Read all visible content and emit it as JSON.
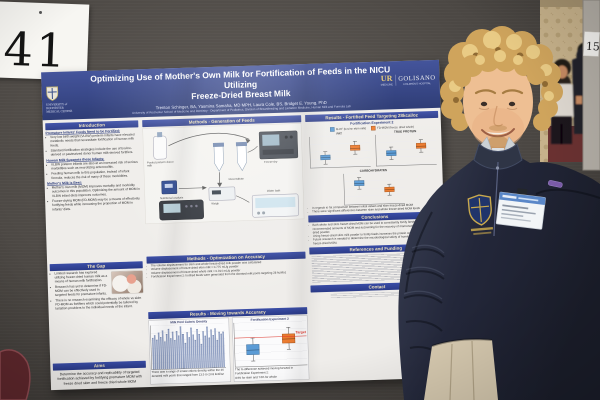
{
  "scene": {
    "board_sign_number": "41",
    "background_sign_number": "15",
    "colors": {
      "poster_header_blue": "#2c3e88",
      "section_band_blue": "#31459b",
      "band_text_gold": "#efe3bd",
      "box_blue": "#5b9bd5",
      "box_orange": "#ed7d31",
      "target_red": "#e03a2f",
      "board_gray": "#56514c",
      "wallpaper_tan": "#c7b28b",
      "sweater_navy": "#262b3b",
      "hair_blond": "#cfa45c",
      "pants_khaki": "#d7cab0",
      "chair_maroon": "#5e272c"
    }
  },
  "poster": {
    "title_line1": "Optimizing Use of Mother's Own Milk for Fortification of Feeds in the NICU Utilizing",
    "title_line2": "Freeze-Dried Breast Milk",
    "authors": "Trenton Schinger, BA, Yasmina Samaha, MD MPH, Laura Cole, BS, Bridget E. Young, PhD",
    "affiliation": "University of Rochester School of Medicine and Dentistry · Department of Pediatrics, Division of Breastfeeding and Lactation Medicine, Human Milk and Formula Lab",
    "logo_left": {
      "line1": "UNIVERSITY of",
      "line2": "ROCHESTER",
      "line3": "MEDICAL CENTER"
    },
    "logo_right": {
      "brand1": "UR",
      "brand1_sub": "MEDICINE",
      "brand2": "GOLISANO",
      "brand2_sub": "CHILDREN'S HOSPITAL"
    },
    "sections": {
      "introduction": {
        "header": "Introduction",
        "sub1_title": "Premature Infants' Feeds Need to be Fortified:",
        "sub1_bullets": [
          "Very low birth weight (VLBW) preterm infants have elevated metabolic needs that necessitate fortification of human milk feeds.",
          "Standard fortification strategies include the use of bovine-derived or pasteurized donor human milk-derived fortifiers."
        ],
        "sub2_title": "Human Milk Supports these Infants:",
        "sub2_bullets": [
          "VLBW preterm infants are also at an increased risk of serious morbidities such as necrotizing enterocolitis.",
          "Feeding human milk to this population, instead of infant formula, reduces the risk of many of these morbidities."
        ],
        "sub3_title": "Mother's Milk is Best:",
        "sub3_bullets": [
          "Mother's own milk (MOM) improves mortality and morbidity outcomes in this population. Optimizing the amount of MOM in VLBW infant diets improves outcomes.",
          "Freeze-drying MOM (FD-MOM) may be a means of effectively fortifying feeds while increasing the proportion of MOM in infants' diets."
        ]
      },
      "gap": {
        "header": "The Gap",
        "bullets": [
          "Limited research has explored utilizing freeze-dried human milk as a means of human milk fortification.",
          "Research has yet to determine if FD-MOM can be effectively used in targeted feeds for premature infants.",
          "There is no research examining the efficacy of whole vs skim FD-MOM as fortifiers which could potentially be tailored by lactation providers to the individual needs of the infant."
        ]
      },
      "aims": {
        "header": "Aims",
        "text": "Determine the accuracy and replicability of targeted fortification achieved by fortifying premature MOM with freeze dried skim and freeze dried whole MOM"
      },
      "methods_generation": {
        "header": "Methods - Generation of Feeds",
        "labels": [
          "Pooled preterm donor milk",
          "Freeze-dry",
          "Weigh",
          "Reconstitute",
          "Nutritional analysis",
          "Water bath"
        ]
      },
      "methods_optimization": {
        "header": "Methods - Optimization on Accuracy",
        "bullets": [
          "The volume displacement for skim and whole freeze-dried milk powder was calculated:",
          "Volume displacement of freeze-dried skim milk ≈ 0.775 mL/g powder",
          "Volume displacement of freeze-dried whole milk ≈ 0.914 mL/g powder",
          "Fortification Experiment 2: fortified feeds were generated from the donated milk pools targeting 28 kcal/oz"
        ]
      },
      "results_accuracy": {
        "header": "Results - Moving towards Accuracy"
      },
      "results_fortified": {
        "header": "Results - Fortified Feed Targeting 28kcal/oz",
        "subtitle": "Fortification Experiment 2",
        "legend": [
          {
            "label": "M-HF (bovine skim milk)",
            "color": "#5b9bd5"
          },
          {
            "label": "FD-MOM (freeze dried whole)",
            "color": "#ed7d31"
          }
        ],
        "notes": [
          "In regards to fat comparison between initial values and skim freeze-dried MOM",
          "There were significant differences between skim and whole freeze-dried MOM feeds"
        ]
      },
      "conclusions": {
        "header": "Conclusions",
        "bullets": [
          "Both whole and skim freeze-dried MOM can be used to consistently fortify feeds to 28 kcal/oz with recommended amounts of MOM and accounting for the recovery of macronutrients from freeze-dried powder.",
          "Using freeze-dried skim milk powder to fortify feeds increases the protein content in fortified feeds.",
          "Future research is needed to determine the microbiological safety of human milk feeds fortified with freeze-dried MOM."
        ]
      },
      "references": {
        "header": "References and Funding"
      },
      "contact": {
        "header": "Contact"
      }
    }
  },
  "chart_data": [
    {
      "type": "bar",
      "title": "Milk Pool Caloric Density",
      "ylabel": "kcal/oz",
      "ylim": [
        0,
        25
      ],
      "values": [
        17.8,
        19.2,
        16.5,
        20.4,
        18.1,
        21.6,
        15.3,
        19.8,
        22.4,
        17.2,
        20.9,
        16.1,
        21.1,
        18.6,
        23.8,
        19.5,
        14.2,
        20.2,
        17.5,
        22.8,
        18.9,
        15.8,
        21.9,
        19.1,
        13.5,
        20.6,
        17.9,
        23.1,
        16.8,
        21.4,
        18.3,
        22.1,
        15.5,
        20.1,
        18.7,
        19.9
      ],
      "note": "There was a range of innate caloric density within the 36 donated milk pools that ranged from 13.5 to 23.8 kcal/oz"
    },
    {
      "type": "boxplot",
      "title": "Fortification Experiment 2",
      "target": 28,
      "target_label": "Target",
      "ylabel": "kcal/oz",
      "ylim": [
        24,
        30
      ],
      "boxw": 26,
      "series": [
        {
          "name": "FD skim",
          "color": "#5b9bd5",
          "values": [
            24.8,
            25.6,
            26.3,
            27.0,
            27.9
          ]
        },
        {
          "name": "FD whole",
          "color": "#ed7d31",
          "values": [
            26.2,
            27.0,
            27.6,
            28.3,
            29.2
          ]
        }
      ],
      "notes": [
        "The % difference achieved moving forward in Fortification Experiment 2:",
        "84% for skim and 74% for whole"
      ]
    },
    {
      "type": "boxplot",
      "title": "FAT",
      "ylim": [
        3,
        8
      ],
      "boxw": 20,
      "series": [
        {
          "name": "M-HF skim",
          "color": "#5b9bd5",
          "values": [
            3.6,
            4.2,
            4.6,
            5.0,
            5.6
          ]
        },
        {
          "name": "FD-MOM whole",
          "color": "#ed7d31",
          "values": [
            5.0,
            5.6,
            6.0,
            6.5,
            7.1
          ]
        }
      ]
    },
    {
      "type": "boxplot",
      "title": "TRUE PROTEIN",
      "ylim": [
        1.5,
        5
      ],
      "boxw": 20,
      "series": [
        {
          "name": "M-HF skim",
          "color": "#5b9bd5",
          "values": [
            2.2,
            2.6,
            2.9,
            3.2,
            3.6
          ]
        },
        {
          "name": "FD-MOM whole",
          "color": "#ed7d31",
          "values": [
            2.9,
            3.3,
            3.6,
            3.9,
            4.3
          ]
        }
      ]
    },
    {
      "type": "boxplot",
      "title": "CARBOHYDRATES",
      "ylim": [
        7,
        13
      ],
      "boxw": 20,
      "series": [
        {
          "name": "M-HF skim",
          "color": "#5b9bd5",
          "values": [
            10.0,
            10.6,
            11.1,
            11.6,
            12.2
          ]
        },
        {
          "name": "FD-MOM whole",
          "color": "#ed7d31",
          "values": [
            8.6,
            9.2,
            9.7,
            10.2,
            10.8
          ]
        }
      ]
    }
  ]
}
